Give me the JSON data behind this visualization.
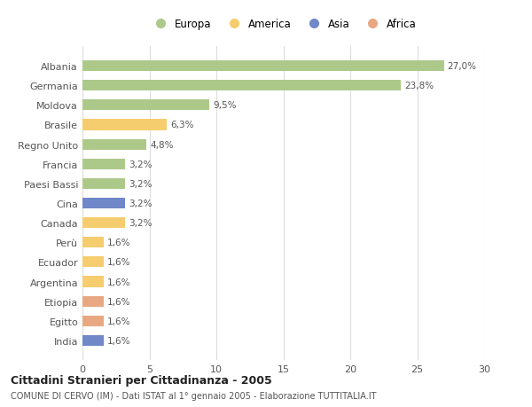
{
  "categories": [
    "Albania",
    "Germania",
    "Moldova",
    "Brasile",
    "Regno Unito",
    "Francia",
    "Paesi Bassi",
    "Cina",
    "Canada",
    "Perù",
    "Ecuador",
    "Argentina",
    "Etiopia",
    "Egitto",
    "India"
  ],
  "values": [
    27.0,
    23.8,
    9.5,
    6.3,
    4.8,
    3.2,
    3.2,
    3.2,
    3.2,
    1.6,
    1.6,
    1.6,
    1.6,
    1.6,
    1.6
  ],
  "labels": [
    "27,0%",
    "23,8%",
    "9,5%",
    "6,3%",
    "4,8%",
    "3,2%",
    "3,2%",
    "3,2%",
    "3,2%",
    "1,6%",
    "1,6%",
    "1,6%",
    "1,6%",
    "1,6%",
    "1,6%"
  ],
  "colors": [
    "#adc98a",
    "#adc98a",
    "#adc98a",
    "#f5cd6e",
    "#adc98a",
    "#adc98a",
    "#adc98a",
    "#7088c8",
    "#f5cd6e",
    "#f5cd6e",
    "#f5cd6e",
    "#f5cd6e",
    "#e8a882",
    "#e8a882",
    "#7088c8"
  ],
  "legend_labels": [
    "Europa",
    "America",
    "Asia",
    "Africa"
  ],
  "legend_colors": [
    "#adc98a",
    "#f5cd6e",
    "#7088c8",
    "#e8a882"
  ],
  "title": "Cittadini Stranieri per Cittadinanza - 2005",
  "subtitle": "COMUNE DI CERVO (IM) - Dati ISTAT al 1° gennaio 2005 - Elaborazione TUTTITALIA.IT",
  "xlim": [
    0,
    30
  ],
  "xticks": [
    0,
    5,
    10,
    15,
    20,
    25,
    30
  ],
  "plot_bg": "#ffffff",
  "fig_bg": "#ffffff",
  "grid_color": "#dddddd"
}
